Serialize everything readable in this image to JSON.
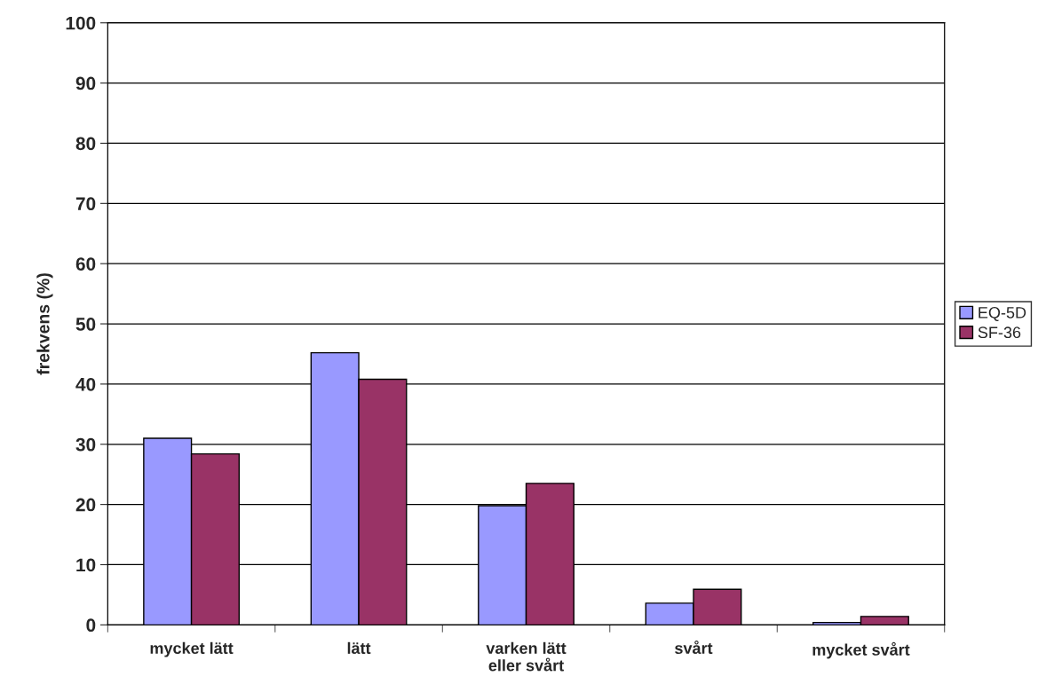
{
  "chart_data": {
    "type": "bar",
    "ylabel": "frekvens (%)",
    "categories": [
      "mycket lätt",
      "lätt",
      "varken lätt\neller svårt",
      "svårt",
      "mycket svårt"
    ],
    "series": [
      {
        "name": "EQ-5D",
        "color": "#9999ff",
        "values": [
          31,
          45.2,
          19.8,
          3.6,
          0.4
        ]
      },
      {
        "name": "SF-36",
        "color": "#993366",
        "values": [
          28.4,
          40.8,
          23.5,
          5.9,
          1.4
        ]
      }
    ],
    "ylim": [
      0,
      100
    ],
    "yticks": [
      0,
      10,
      20,
      30,
      40,
      50,
      60,
      70,
      80,
      90,
      100
    ],
    "grid": "y",
    "legend": "right"
  }
}
